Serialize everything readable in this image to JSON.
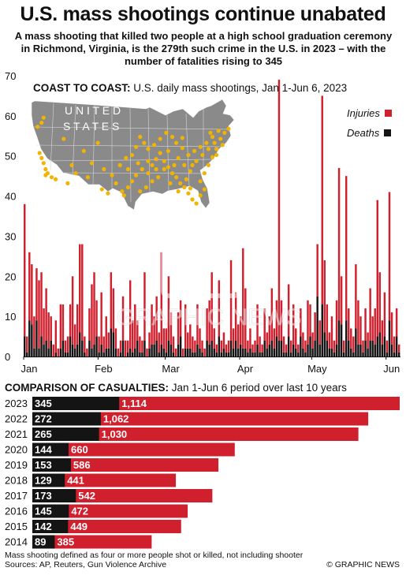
{
  "title": "U.S. mass shootings continue unabated",
  "subtitle": "A mass shooting that killed two people at a high school graduation ceremony in Richmond, Virginia, is the 279th such crime in the U.S. in 2023 – with the number of fatalities rising to 345",
  "panel1": {
    "title_bold": "COAST TO COAST:",
    "title_rest": " U.S. daily mass shootings, Jan 1-Jun 6, 2023",
    "map_label_line1": "U N I T E D",
    "map_label_line2": "S T A T E S"
  },
  "panel2": {
    "title_bold": "COMPARISON OF CASUALTIES:",
    "title_rest": " Jan 1-Jun 6 period over last 10 years"
  },
  "footnote_line1": "Mass shooting defined as four or more people shot or killed, not including shooter",
  "footnote_line2": "Sources: AP, Reuters, Gun Violence Archive",
  "credit": "© GRAPHIC NEWS",
  "watermark_text": "GRAPHIC NEWS",
  "colors": {
    "injuries": "#d0202e",
    "deaths": "#141414",
    "map": "#8a8a8a",
    "dots": "#f2b400"
  },
  "chart_data": [
    {
      "type": "bar",
      "stacked": true,
      "title": "U.S. daily mass shootings, Jan 1-Jun 6, 2023",
      "ylim": [
        0,
        70
      ],
      "yticks": [
        0,
        10,
        20,
        30,
        40,
        50,
        60,
        70
      ],
      "xtick_labels": [
        {
          "label": "Jan",
          "day": 1
        },
        {
          "label": "Feb",
          "day": 32
        },
        {
          "label": "Mar",
          "day": 60
        },
        {
          "label": "Apr",
          "day": 91
        },
        {
          "label": "May",
          "day": 121
        },
        {
          "label": "Jun",
          "day": 152
        }
      ],
      "grid": false,
      "legend_position": "top-right",
      "series": [
        {
          "name": "Injuries",
          "color": "#d0202e",
          "values": [
            33,
            4,
            17,
            15,
            8,
            13,
            17,
            16,
            9,
            13,
            9,
            6,
            3,
            8,
            2,
            11,
            9,
            3,
            4,
            8,
            17,
            6,
            10,
            22,
            24,
            4,
            2,
            8,
            16,
            18,
            9,
            4,
            13,
            4,
            8,
            4,
            14,
            11,
            5,
            2,
            3,
            11,
            4,
            3,
            17,
            8,
            11,
            5,
            4,
            3,
            17,
            2,
            4,
            10,
            7,
            11,
            5,
            23,
            5,
            6,
            16,
            8,
            4,
            2,
            8,
            9,
            2,
            11,
            4,
            6,
            4,
            3,
            10,
            5,
            3,
            2,
            8,
            11,
            17,
            5,
            2,
            14,
            3,
            4,
            2,
            3,
            20,
            5,
            12,
            6,
            7,
            25,
            15,
            3,
            5,
            2,
            3,
            10,
            4,
            2,
            8,
            4,
            7,
            13,
            5,
            9,
            65,
            10,
            4,
            2,
            13,
            3,
            10,
            5,
            2,
            7,
            4,
            3,
            11,
            8,
            4,
            7,
            13,
            6,
            52,
            18,
            9,
            4,
            8,
            3,
            11,
            38,
            12,
            3,
            36,
            8,
            5,
            4,
            16,
            11,
            7,
            3,
            8,
            4,
            13,
            6,
            9,
            34,
            15,
            6,
            11,
            3,
            32,
            8,
            4,
            7,
            2
          ]
        },
        {
          "name": "Deaths",
          "color": "#141414",
          "values": [
            5,
            1,
            9,
            8,
            2,
            9,
            2,
            5,
            3,
            4,
            2,
            4,
            0,
            1,
            0,
            2,
            4,
            1,
            1,
            5,
            3,
            2,
            3,
            6,
            4,
            1,
            0,
            4,
            2,
            3,
            5,
            1,
            3,
            1,
            2,
            2,
            7,
            6,
            2,
            0,
            1,
            4,
            0,
            1,
            2,
            1,
            2,
            4,
            1,
            1,
            4,
            0,
            2,
            3,
            3,
            4,
            1,
            3,
            2,
            1,
            4,
            3,
            1,
            0,
            3,
            5,
            0,
            2,
            2,
            2,
            1,
            1,
            3,
            2,
            1,
            0,
            4,
            3,
            4,
            2,
            1,
            5,
            1,
            2,
            1,
            1,
            4,
            2,
            4,
            2,
            3,
            2,
            2,
            1,
            2,
            1,
            1,
            3,
            1,
            1,
            4,
            2,
            3,
            4,
            2,
            5,
            4,
            4,
            1,
            1,
            5,
            1,
            3,
            2,
            1,
            5,
            2,
            1,
            3,
            5,
            2,
            4,
            15,
            3,
            13,
            6,
            4,
            2,
            2,
            1,
            3,
            9,
            8,
            1,
            9,
            4,
            2,
            1,
            7,
            3,
            3,
            1,
            4,
            2,
            4,
            4,
            3,
            5,
            6,
            3,
            5,
            1,
            9,
            3,
            1,
            5,
            1
          ]
        }
      ]
    },
    {
      "type": "bar",
      "orientation": "horizontal",
      "stacked": true,
      "title": "Jan 1-Jun 6 period over last 10 years",
      "categories": [
        "2023",
        "2022",
        "2021",
        "2020",
        "2019",
        "2018",
        "2017",
        "2016",
        "2015",
        "2014"
      ],
      "series": [
        {
          "name": "Deaths",
          "color": "#141414",
          "values": [
            345,
            272,
            265,
            144,
            153,
            129,
            173,
            145,
            142,
            89
          ]
        },
        {
          "name": "Injuries",
          "color": "#d0202e",
          "values": [
            1114,
            1062,
            1030,
            660,
            586,
            441,
            542,
            472,
            449,
            385
          ]
        }
      ]
    }
  ],
  "map_dots": [
    [
      0.05,
      0.55
    ],
    [
      0.06,
      0.6
    ],
    [
      0.07,
      0.66
    ],
    [
      0.08,
      0.7
    ],
    [
      0.07,
      0.72
    ],
    [
      0.1,
      0.74
    ],
    [
      0.12,
      0.76
    ],
    [
      0.04,
      0.5
    ],
    [
      0.03,
      0.24
    ],
    [
      0.05,
      0.2
    ],
    [
      0.06,
      0.15
    ],
    [
      0.2,
      0.62
    ],
    [
      0.22,
      0.7
    ],
    [
      0.28,
      0.74
    ],
    [
      0.3,
      0.6
    ],
    [
      0.26,
      0.48
    ],
    [
      0.36,
      0.66
    ],
    [
      0.4,
      0.72
    ],
    [
      0.42,
      0.8
    ],
    [
      0.45,
      0.88
    ],
    [
      0.46,
      0.92
    ],
    [
      0.48,
      0.84
    ],
    [
      0.5,
      0.78
    ],
    [
      0.52,
      0.72
    ],
    [
      0.44,
      0.62
    ],
    [
      0.47,
      0.55
    ],
    [
      0.5,
      0.52
    ],
    [
      0.53,
      0.6
    ],
    [
      0.55,
      0.66
    ],
    [
      0.58,
      0.7
    ],
    [
      0.6,
      0.62
    ],
    [
      0.62,
      0.56
    ],
    [
      0.64,
      0.5
    ],
    [
      0.66,
      0.58
    ],
    [
      0.68,
      0.64
    ],
    [
      0.7,
      0.7
    ],
    [
      0.72,
      0.74
    ],
    [
      0.74,
      0.8
    ],
    [
      0.76,
      0.84
    ],
    [
      0.78,
      0.9
    ],
    [
      0.8,
      0.96
    ],
    [
      0.82,
      1.0
    ],
    [
      0.79,
      0.85
    ],
    [
      0.84,
      0.78
    ],
    [
      0.86,
      0.7
    ],
    [
      0.88,
      0.62
    ],
    [
      0.9,
      0.54
    ],
    [
      0.92,
      0.46
    ],
    [
      0.94,
      0.36
    ],
    [
      0.96,
      0.3
    ],
    [
      0.98,
      0.26
    ],
    [
      0.93,
      0.28
    ],
    [
      0.9,
      0.34
    ],
    [
      0.87,
      0.4
    ],
    [
      0.84,
      0.44
    ],
    [
      0.81,
      0.48
    ],
    [
      0.78,
      0.52
    ],
    [
      0.75,
      0.45
    ],
    [
      0.72,
      0.4
    ],
    [
      0.7,
      0.34
    ],
    [
      0.67,
      0.3
    ],
    [
      0.64,
      0.36
    ],
    [
      0.61,
      0.42
    ],
    [
      0.58,
      0.46
    ],
    [
      0.56,
      0.4
    ],
    [
      0.54,
      0.34
    ],
    [
      0.52,
      0.44
    ],
    [
      0.73,
      0.55
    ],
    [
      0.76,
      0.62
    ],
    [
      0.79,
      0.68
    ],
    [
      0.82,
      0.58
    ],
    [
      0.85,
      0.52
    ],
    [
      0.88,
      0.46
    ],
    [
      0.91,
      0.4
    ],
    [
      0.95,
      0.42
    ],
    [
      0.66,
      0.66
    ],
    [
      0.63,
      0.74
    ],
    [
      0.6,
      0.78
    ],
    [
      0.57,
      0.84
    ],
    [
      0.54,
      0.88
    ],
    [
      0.69,
      0.8
    ],
    [
      0.73,
      0.88
    ],
    [
      0.86,
      0.86
    ],
    [
      0.84,
      0.92
    ],
    [
      0.77,
      0.76
    ],
    [
      0.71,
      0.62
    ],
    [
      0.68,
      0.48
    ],
    [
      0.35,
      0.86
    ],
    [
      0.38,
      0.9
    ],
    [
      0.33,
      0.4
    ],
    [
      0.16,
      0.36
    ],
    [
      0.18,
      0.8
    ],
    [
      0.62,
      0.66
    ],
    [
      0.8,
      0.62
    ],
    [
      0.92,
      0.52
    ],
    [
      0.89,
      0.3
    ],
    [
      0.75,
      0.35
    ],
    [
      0.58,
      0.58
    ],
    [
      0.48,
      0.66
    ]
  ]
}
